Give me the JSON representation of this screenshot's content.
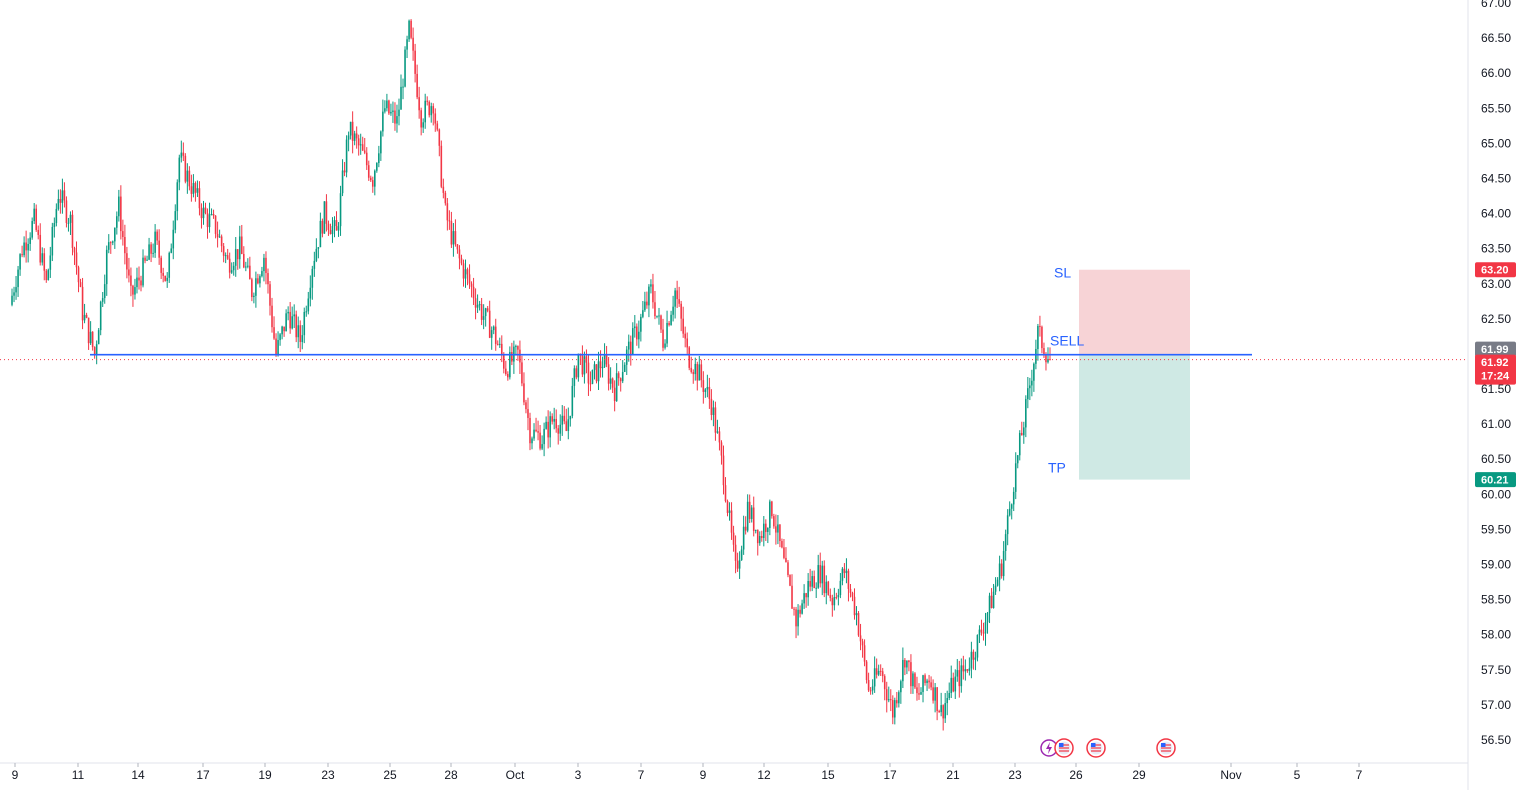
{
  "chart_data": {
    "type": "candlestick",
    "y_ticks": [
      "67.00",
      "66.50",
      "66.00",
      "65.50",
      "65.00",
      "64.50",
      "64.00",
      "63.50",
      "63.00",
      "62.50",
      "62.00",
      "61.50",
      "61.00",
      "60.50",
      "60.00",
      "59.50",
      "59.00",
      "58.50",
      "58.00",
      "57.50",
      "57.00",
      "56.50"
    ],
    "x_ticks": [
      "9",
      "11",
      "14",
      "17",
      "19",
      "23",
      "25",
      "28",
      "Oct",
      "3",
      "7",
      "9",
      "12",
      "15",
      "17",
      "21",
      "23",
      "26",
      "29",
      "Nov",
      "5",
      "7"
    ],
    "ylim": [
      56.3,
      67.0
    ],
    "price_path": [
      [
        "Sep 9",
        62.7
      ],
      [
        "Sep 10",
        63.5
      ],
      [
        "Sep 10b",
        63.9
      ],
      [
        "Sep 11",
        63.0
      ],
      [
        "Sep 11b",
        64.3
      ],
      [
        "Sep 12",
        63.9
      ],
      [
        "Sep 12b",
        62.6
      ],
      [
        "Sep 13",
        62.0
      ],
      [
        "Sep 13b",
        63.4
      ],
      [
        "Sep 14",
        64.1
      ],
      [
        "Sep 14b",
        62.8
      ],
      [
        "Sep 15",
        63.2
      ],
      [
        "Sep 16",
        63.6
      ],
      [
        "Sep 16b",
        63.0
      ],
      [
        "Sep 17",
        64.8
      ],
      [
        "Sep 17b",
        64.4
      ],
      [
        "Sep 18",
        64.0
      ],
      [
        "Sep 19",
        63.8
      ],
      [
        "Sep 19b",
        63.3
      ],
      [
        "Sep 20",
        63.5
      ],
      [
        "Sep 21",
        62.9
      ],
      [
        "Sep 21b",
        63.4
      ],
      [
        "Sep 22",
        62.0
      ],
      [
        "Sep 22b",
        62.6
      ],
      [
        "Sep 23",
        62.2
      ],
      [
        "Sep 23b",
        63.3
      ],
      [
        "Sep 24",
        64.0
      ],
      [
        "Sep 24b",
        63.7
      ],
      [
        "Sep 25",
        65.2
      ],
      [
        "Sep 25b",
        64.9
      ],
      [
        "Sep 26",
        64.5
      ],
      [
        "Sep 26b",
        65.5
      ],
      [
        "Sep 27",
        65.3
      ],
      [
        "Sep 27b",
        66.6
      ],
      [
        "Sep 28",
        65.4
      ],
      [
        "Sep 28b",
        65.6
      ],
      [
        "Sep 29",
        64.0
      ],
      [
        "Sep 29b",
        63.4
      ],
      [
        "Sep 30",
        63.0
      ],
      [
        "Sep 30b",
        62.6
      ],
      [
        "Oct 1",
        62.3
      ],
      [
        "Oct 1b",
        61.8
      ],
      [
        "Oct 2",
        62.0
      ],
      [
        "Oct 2b",
        60.9
      ],
      [
        "Oct 3",
        60.8
      ],
      [
        "Oct 3b",
        61.1
      ],
      [
        "Oct 4",
        60.9
      ],
      [
        "Oct 5",
        62.0
      ],
      [
        "Oct 5b",
        61.6
      ],
      [
        "Oct 6",
        61.9
      ],
      [
        "Oct 6b",
        61.5
      ],
      [
        "Oct 7",
        62.0
      ],
      [
        "Oct 7b",
        62.4
      ],
      [
        "Oct 8",
        62.9
      ],
      [
        "Oct 8b",
        62.2
      ],
      [
        "Oct 9",
        62.9
      ],
      [
        "Oct 9b",
        62.0
      ],
      [
        "Oct 10",
        61.7
      ],
      [
        "Oct 10b",
        61.3
      ],
      [
        "Oct 11",
        60.3
      ],
      [
        "Oct 11b",
        58.9
      ],
      [
        "Oct 12",
        59.8
      ],
      [
        "Oct 12b",
        59.4
      ],
      [
        "Oct 13",
        59.8
      ],
      [
        "Oct 13b",
        59.0
      ],
      [
        "Oct 14",
        58.2
      ],
      [
        "Oct 14b",
        58.7
      ],
      [
        "Oct 15",
        58.9
      ],
      [
        "Oct 15b",
        58.5
      ],
      [
        "Oct 16",
        58.9
      ],
      [
        "Oct 16b",
        58.3
      ],
      [
        "Oct 17",
        57.2
      ],
      [
        "Oct 17b",
        57.5
      ],
      [
        "Oct 18",
        56.9
      ],
      [
        "Oct 18b",
        57.7
      ],
      [
        "Oct 19",
        57.1
      ],
      [
        "Oct 19b",
        57.4
      ],
      [
        "Oct 20",
        56.9
      ],
      [
        "Oct 20b",
        57.3
      ],
      [
        "Oct 21",
        57.5
      ],
      [
        "Oct 21b",
        57.9
      ],
      [
        "Oct 22",
        58.4
      ],
      [
        "Oct 22b",
        59.0
      ],
      [
        "Oct 23",
        60.2
      ],
      [
        "Oct 23b",
        61.2
      ],
      [
        "Oct 24",
        62.3
      ],
      [
        "Oct 24b",
        61.9
      ]
    ],
    "horizontal_line": 61.99,
    "position": {
      "side": "SELL",
      "entry": 61.99,
      "stop_loss": 63.2,
      "take_profit": 60.21
    },
    "labels": {
      "sl": "SL",
      "sell": "SELL",
      "tp": "TP"
    },
    "price_tags": [
      {
        "text": "63.20",
        "value": 63.2,
        "color": "#f23645"
      },
      {
        "text": "61.99",
        "value": 61.99,
        "color": "#787b86"
      },
      {
        "text": "61.92",
        "value": 61.92,
        "color": "#f23645",
        "sub": "17:24"
      },
      {
        "text": "60.21",
        "value": 60.21,
        "color": "#089981"
      }
    ],
    "colors": {
      "up": "#089981",
      "down": "#f23645",
      "line": "#2962ff",
      "sl_zone": "#f7d3d6",
      "tp_zone": "#cfe9e4"
    }
  },
  "event_icons": [
    "flag-icon",
    "flag-icon",
    "flag-icon"
  ]
}
